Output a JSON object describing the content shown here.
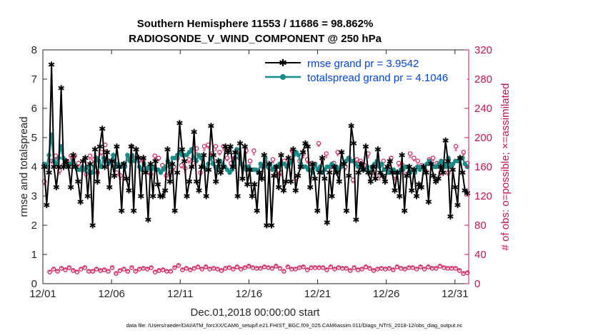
{
  "chart_data": {
    "type": "line",
    "title": "Southern Hemisphere 11553 / 11686 = 98.862%",
    "subtitle": "RADIOSONDE_V_WIND_COMPONENT @ 250 hPa",
    "xlabel": "Dec.01,2018 00:00:00 start",
    "ylabel": "rmse and totalspread",
    "y2label": "# of obs: o=possible; ×=assimilated",
    "footer": "data file: /Users/raeder/DAI/ATM_forcXX/CAM6_setup/f.e21.FHIST_BGC.f09_025.CAM6assim.011/Diags_NTrS_2018-12/obs_diag_output.nc",
    "xlim": [
      0,
      31
    ],
    "ylim": [
      0,
      8
    ],
    "y2lim": [
      0,
      320
    ],
    "x_ticks": [
      0,
      5,
      10,
      15,
      20,
      25,
      30
    ],
    "x_tick_labels": [
      "12/01",
      "12/06",
      "12/11",
      "12/16",
      "12/21",
      "12/26",
      "12/31"
    ],
    "y_tick_labels": [
      "0",
      "1",
      "2",
      "3",
      "4",
      "5",
      "6",
      "7",
      "8"
    ],
    "y2_tick_labels": [
      "0",
      "40",
      "80",
      "120",
      "160",
      "200",
      "240",
      "280",
      "320"
    ],
    "colors": {
      "rmse": "#000000",
      "spread": "#178a8a",
      "obs": "#d11a5a",
      "legend_text": "#0044dd",
      "y2axis": "#cc1155"
    },
    "series": [
      {
        "name": "rmse grand pr = 3.9542",
        "values": [
          4.0,
          2.7,
          3.8,
          7.5,
          4.0,
          3.3,
          4.0,
          6.7,
          4.0,
          4.2,
          4.0,
          3.3,
          4.4,
          4.0,
          3.5,
          2.8,
          4.2,
          4.3,
          3.0,
          4.1,
          2.0,
          4.6,
          3.5,
          4.7,
          5.3,
          4.0,
          4.5,
          3.3,
          4.2,
          3.7,
          4.7,
          4.0,
          2.5,
          4.1,
          3.6,
          3.2,
          4.7,
          2.5,
          4.6,
          4.3,
          3.0,
          4.3,
          3.8,
          2.2,
          4.1,
          3.0,
          4.2,
          3.4,
          3.0,
          3.0,
          3.2,
          4.6,
          3.5,
          4.1,
          2.5,
          3.8,
          5.5,
          4.6,
          4.2,
          3.0,
          3.5,
          4.0,
          5.2,
          3.5,
          3.2,
          4.0,
          4.4,
          3.0,
          3.9,
          5.4,
          4.4,
          3.5,
          4.2,
          3.8,
          4.0,
          4.7,
          4.5,
          4.7,
          4.0,
          4.5,
          3.0,
          4.8,
          3.6,
          4.7,
          3.4,
          3.9,
          3.0,
          3.4,
          2.5,
          3.8,
          3.6,
          4.4,
          2.0,
          4.1,
          2.0,
          3.7,
          4.0,
          3.3,
          4.4,
          3.2,
          3.5,
          4.3,
          3.5,
          4.6,
          3.2,
          3.7,
          4.0,
          4.5,
          4.8,
          4.7,
          3.3,
          4.1,
          3.6,
          2.5,
          3.8,
          4.3,
          3.6,
          2.1,
          3.8,
          3.0,
          4.0,
          3.8,
          3.5,
          4.5,
          4.1,
          2.5,
          3.7,
          5.4,
          4.8,
          2.2,
          3.8,
          4.1,
          3.9,
          4.7,
          3.8,
          3.5,
          4.0,
          3.6,
          4.6,
          3.8,
          3.7,
          3.5,
          4.0,
          4.2,
          3.8,
          3.2,
          3.8,
          3.0,
          4.4,
          2.5,
          3.7,
          4.0,
          3.2,
          3.9,
          3.0,
          3.4,
          3.3,
          4.0,
          3.8,
          2.8,
          4.1,
          3.7,
          3.5,
          3.6,
          4.0,
          3.8,
          4.9,
          4.2,
          2.3,
          3.9,
          3.3,
          2.7,
          4.3,
          3.8,
          3.2,
          3.1
        ],
        "style": "line-star"
      },
      {
        "name": "totalspread grand pr = 4.1046",
        "values": [
          4.1,
          4.0,
          4.4,
          5.1,
          4.2,
          4.1,
          4.3,
          4.7,
          4.3,
          4.2,
          4.0,
          4.1,
          4.2,
          4.0,
          3.9,
          3.9,
          4.0,
          3.9,
          4.0,
          3.8,
          3.8,
          4.0,
          4.3,
          4.2,
          4.0,
          4.3,
          4.2,
          4.1,
          4.2,
          4.4,
          4.0,
          4.1,
          4.0,
          4.1,
          4.0,
          4.4,
          4.2,
          4.4,
          4.2,
          4.3,
          4.0,
          3.9,
          4.1,
          3.9,
          4.0,
          3.9,
          4.0,
          3.9,
          3.9,
          3.8,
          3.9,
          4.0,
          4.2,
          4.0,
          4.3,
          4.3,
          4.4,
          4.5,
          4.4,
          4.4,
          4.4,
          4.5,
          4.6,
          4.3,
          4.2,
          4.4,
          4.3,
          4.0,
          3.9,
          4.1,
          4.3,
          4.1,
          4.0,
          3.9,
          4.2,
          4.1,
          4.0,
          3.9,
          3.8,
          3.9,
          4.1,
          4.6,
          4.3,
          4.1,
          4.0,
          3.9,
          4.0,
          3.9,
          3.9,
          3.9,
          3.8,
          4.1,
          4.0,
          4.3,
          4.0,
          4.1,
          3.9,
          4.0,
          4.0,
          4.1,
          4.1,
          4.1,
          4.0,
          4.1,
          4.2,
          4.4,
          4.5,
          4.4,
          4.1,
          4.0,
          4.0,
          3.9,
          3.9,
          3.8,
          4.1,
          3.9,
          4.0,
          3.8,
          3.9,
          4.0,
          4.0,
          4.1,
          4.0,
          4.0,
          3.9,
          4.0,
          4.1,
          4.2,
          4.3,
          4.2,
          4.2,
          4.1,
          4.0,
          4.0,
          3.9,
          3.9,
          4.0,
          3.8,
          4.0,
          4.1,
          4.2,
          4.0,
          4.1,
          3.9,
          3.9,
          3.8,
          3.9,
          3.9,
          3.8,
          3.8,
          3.9,
          3.9,
          4.0,
          4.0,
          3.8,
          3.9,
          3.8,
          4.0,
          3.9,
          4.0,
          3.9,
          4.1,
          4.2,
          4.1,
          4.0,
          4.0,
          4.1,
          4.2,
          4.1,
          4.0,
          4.3,
          4.0,
          4.1,
          4.2,
          4.2,
          4.3,
          4.3,
          4.1,
          4.0
        ],
        "style": "line-dot"
      },
      {
        "name": "obs possible",
        "axis": "right",
        "values": [
          16,
          20,
          17,
          21,
          19,
          22,
          18,
          16,
          20,
          22,
          17,
          17,
          20,
          18,
          19,
          17,
          22,
          14,
          18,
          20,
          17,
          22,
          17,
          20,
          21,
          20,
          22,
          16,
          18,
          19,
          17,
          17,
          22,
          25,
          19,
          21,
          19,
          21,
          23,
          20,
          23,
          20,
          21,
          20,
          18,
          21,
          22,
          20,
          23,
          20,
          22,
          24,
          22,
          21,
          21,
          23,
          22,
          21,
          24,
          21,
          17,
          23,
          20,
          20,
          22,
          23,
          19,
          22,
          22,
          22,
          22,
          19,
          23,
          20,
          22,
          21,
          21,
          18,
          22,
          19,
          20,
          23,
          21,
          18,
          20,
          21,
          20,
          21,
          19,
          23,
          21,
          20,
          22,
          22,
          20,
          23,
          20,
          23,
          21,
          21,
          24,
          22,
          21,
          21,
          21,
          18,
          14,
          15
        ]
      },
      {
        "name": "obs assimilated",
        "axis": "right",
        "values": [
          135,
          155,
          165,
          170,
          150,
          157,
          165,
          170,
          170,
          160,
          152,
          145,
          170,
          165,
          148,
          175,
          182,
          162,
          160,
          148,
          142,
          155,
          168,
          182,
          168,
          165,
          162,
          152,
          145,
          170,
          168,
          158,
          142,
          148,
          155,
          168,
          158,
          152,
          165,
          160,
          178,
          148,
          182,
          185,
          172,
          182,
          176,
          182,
          168,
          160,
          168,
          178,
          158,
          178,
          162,
          176,
          150,
          158,
          162,
          152,
          165,
          145,
          148,
          162,
          158,
          178,
          140,
          162,
          172,
          165,
          160,
          158,
          188,
          165,
          172,
          155,
          160,
          175,
          158,
          155,
          168,
          138,
          165,
          162,
          158,
          172,
          148,
          158,
          142,
          162,
          152,
          168,
          142,
          160,
          158,
          145,
          172,
          168,
          162,
          158,
          150,
          165,
          168,
          160,
          148,
          158,
          148,
          158,
          182,
          165,
          175,
          160
        ]
      },
      {
        "name": "obs possible (upper)",
        "axis": "right",
        "values": [
          140,
          160,
          168,
          175,
          155,
          162,
          168,
          175,
          175,
          165,
          158,
          150,
          175,
          170,
          152,
          180,
          190,
          168,
          165,
          152,
          148,
          160,
          172,
          188,
          172,
          170,
          168,
          158,
          150,
          175,
          172,
          162,
          148,
          152,
          160,
          172,
          162,
          158,
          170,
          165,
          185,
          152,
          188,
          190,
          178,
          188,
          180,
          188,
          172,
          165,
          172,
          182,
          162,
          182,
          168,
          182,
          155,
          162,
          168,
          158,
          170,
          150,
          152,
          168,
          162,
          182,
          145,
          168,
          178,
          170,
          165,
          162,
          192,
          170,
          178,
          160,
          165,
          180,
          162,
          160,
          172,
          142,
          170,
          168,
          162,
          178,
          152,
          162,
          148,
          168,
          158,
          172,
          148,
          165,
          162,
          150,
          178,
          172,
          168,
          162,
          155,
          170,
          172,
          165,
          152,
          162,
          152,
          162,
          188,
          170,
          180,
          165
        ]
      }
    ]
  }
}
